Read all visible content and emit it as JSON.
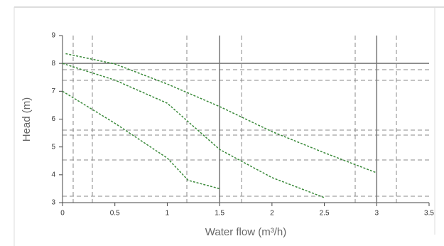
{
  "chart_data": {
    "type": "line",
    "x_label": "Water flow (m³/h)",
    "y_label": "Head (m)",
    "xlim": [
      0,
      3.5
    ],
    "xticks": [
      0,
      0.5,
      1,
      1.5,
      2,
      2.5,
      3,
      3.5
    ],
    "ylim": [
      3,
      9
    ],
    "yticks": [
      3,
      4,
      5,
      6,
      7,
      8,
      9
    ],
    "series": [
      {
        "color": "#3a8a3a",
        "x": [
          0.03,
          0.5,
          1,
          1.5,
          2,
          2.5,
          3
        ],
        "values": [
          8.35,
          7.98,
          7.26,
          6.45,
          5.55,
          4.79,
          4.07
        ]
      },
      {
        "color": "#3a8a3a",
        "x": [
          0,
          0.5,
          1,
          1.5,
          2,
          2.5
        ],
        "values": [
          8,
          7.4,
          6.57,
          4.91,
          3.9,
          3.18
        ]
      },
      {
        "color": "#3a8a3a",
        "x": [
          0,
          0.5,
          1,
          1.2,
          1.5
        ],
        "values": [
          7,
          5.85,
          4.6,
          3.8,
          3.5
        ]
      }
    ]
  }
}
